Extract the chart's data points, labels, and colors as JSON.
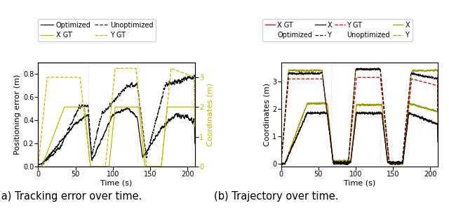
{
  "title_a": "(a) Tracking error over time.",
  "title_b": "(b) Trajectory over time.",
  "xlabel": "Time (s)",
  "ylabel_a": "Positioning error (m)",
  "ylabel_b": "Coordinates (m)",
  "ylabel_a2": "Coordinates (m)",
  "xlim": [
    0,
    210
  ],
  "ylim_a": [
    0.0,
    0.9
  ],
  "ylim_a2": [
    0,
    3.5
  ],
  "ylim_b": [
    -0.1,
    3.7
  ],
  "xticks": [
    0,
    50,
    100,
    150,
    200
  ],
  "yticks_a": [
    0.0,
    0.2,
    0.4,
    0.6,
    0.8
  ],
  "yticks_a2": [
    0,
    1,
    2,
    3
  ],
  "yticks_b": [
    0,
    1,
    2,
    3
  ],
  "vlines": [
    67,
    133
  ],
  "color_black": "#111111",
  "color_yellow": "#bbbb00",
  "color_red": "#cc0000",
  "color_olive": "#999900",
  "legend_fontsize": 7,
  "axis_fontsize": 8,
  "tick_fontsize": 7,
  "caption_fontsize": 10.5
}
